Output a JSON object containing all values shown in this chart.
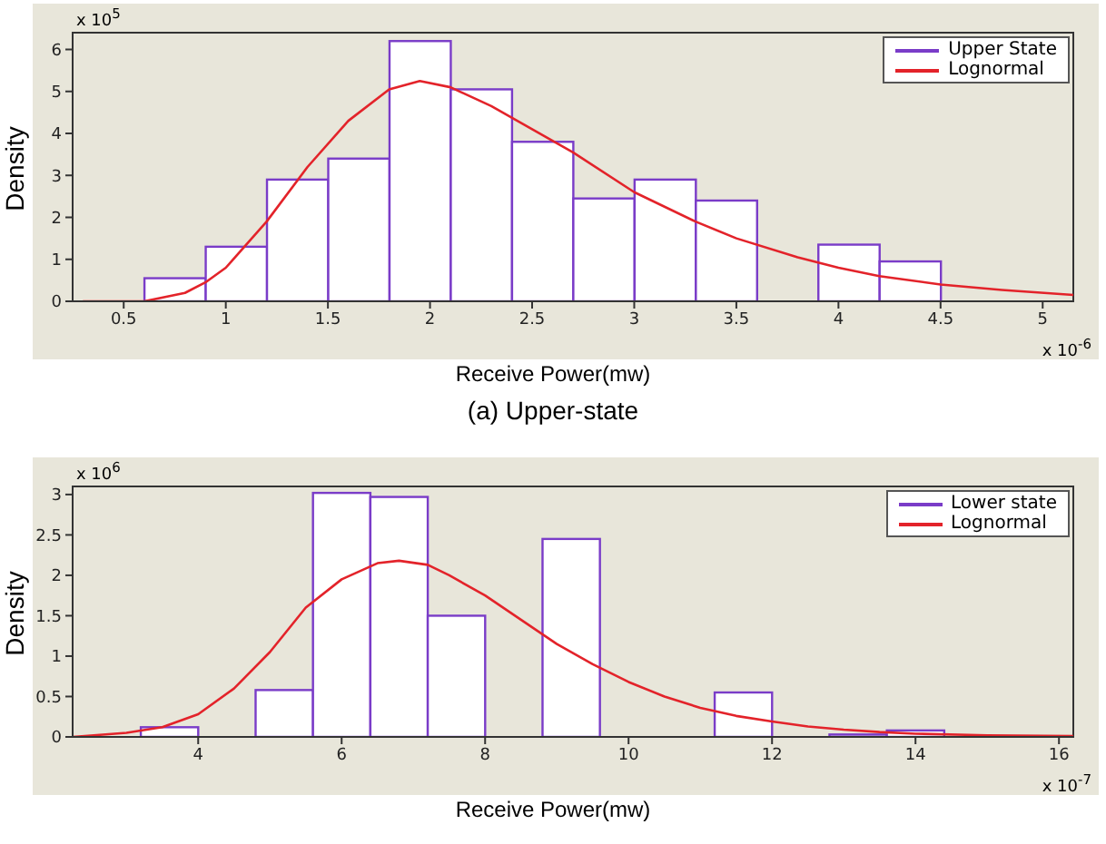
{
  "chart_data": [
    {
      "type": "histogram",
      "xlabel": "Receive Power(mw)",
      "ylabel": "Density",
      "bins": [
        0.3,
        0.6,
        0.9,
        1.2,
        1.5,
        1.8,
        2.1,
        2.4,
        2.7,
        3.0,
        3.3,
        3.6,
        3.9,
        4.2,
        4.5,
        4.8,
        5.1
      ],
      "series": [
        {
          "name": "Upper State",
          "color": "#7a3cc8",
          "values": [
            0,
            0.55,
            1.3,
            2.9,
            3.4,
            6.2,
            5.05,
            3.8,
            2.45,
            2.9,
            2.4,
            0,
            1.35,
            0.95,
            0,
            0
          ]
        },
        {
          "name": "Lognormal",
          "type": "line",
          "color": "#e3232a",
          "x": [
            0.3,
            0.6,
            0.8,
            0.9,
            1.0,
            1.2,
            1.4,
            1.6,
            1.8,
            1.95,
            2.1,
            2.3,
            2.5,
            2.7,
            3.0,
            3.3,
            3.5,
            3.8,
            4.0,
            4.2,
            4.5,
            4.8,
            5.15
          ],
          "values": [
            0,
            0,
            0.2,
            0.45,
            0.8,
            1.9,
            3.2,
            4.3,
            5.05,
            5.25,
            5.1,
            4.65,
            4.1,
            3.55,
            2.6,
            1.9,
            1.5,
            1.05,
            0.8,
            0.6,
            0.4,
            0.27,
            0.15
          ]
        }
      ],
      "xlim": [
        0.25,
        5.15
      ],
      "ylim": [
        0,
        6.4
      ],
      "xticks": [
        0.5,
        1,
        1.5,
        2,
        2.5,
        3,
        3.5,
        4,
        4.5,
        5
      ],
      "yticks": [
        0,
        1,
        2,
        3,
        4,
        5,
        6
      ],
      "legend": "top right",
      "annotations": [
        "x 10$^{5}$",
        "x 10$^{-6}$",
        "(a)  Upper-state"
      ]
    },
    {
      "type": "histogram",
      "xlabel": "Receive Power(mw)",
      "ylabel": "Density",
      "bins": [
        2.4,
        3.2,
        4.0,
        4.8,
        5.6,
        6.4,
        7.2,
        8.0,
        8.8,
        9.6,
        10.4,
        11.2,
        12.0,
        12.8,
        13.6,
        14.4,
        15.2
      ],
      "series": [
        {
          "name": "Lower state",
          "color": "#7a3cc8",
          "values": [
            0,
            0.12,
            0,
            0.58,
            3.02,
            2.97,
            1.5,
            0,
            2.45,
            0,
            0,
            0.55,
            0,
            0.03,
            0.08,
            null
          ]
        },
        {
          "name": "Lognormal",
          "type": "line",
          "color": "#e3232a",
          "x": [
            2.25,
            3,
            3.5,
            4,
            4.5,
            5,
            5.5,
            6,
            6.5,
            6.8,
            7.2,
            7.5,
            8,
            8.5,
            9,
            9.5,
            10,
            10.5,
            11,
            11.5,
            12,
            12.5,
            13,
            13.5,
            14,
            15,
            16.2
          ],
          "values": [
            0,
            0.05,
            0.12,
            0.28,
            0.6,
            1.05,
            1.6,
            1.95,
            2.15,
            2.18,
            2.13,
            2.0,
            1.75,
            1.45,
            1.15,
            0.9,
            0.68,
            0.5,
            0.36,
            0.26,
            0.19,
            0.13,
            0.09,
            0.06,
            0.04,
            0.02,
            0.01
          ]
        }
      ],
      "xlim": [
        2.25,
        16.2
      ],
      "ylim": [
        0,
        3.1
      ],
      "xticks": [
        4,
        6,
        8,
        10,
        12,
        14,
        16
      ],
      "yticks": [
        0,
        0.5,
        1,
        1.5,
        2,
        2.5,
        3
      ],
      "legend": "top right",
      "annotations": [
        "x 10$^{6}$",
        "x 10$^{-7}$"
      ]
    }
  ]
}
